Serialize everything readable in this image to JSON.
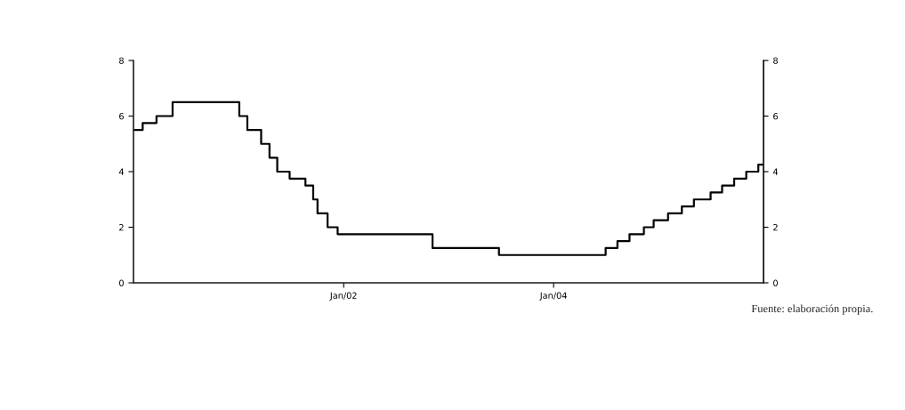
{
  "chart_data": {
    "type": "step",
    "x": [
      "2000-01-01",
      "2000-02-02",
      "2000-03-21",
      "2000-05-16",
      "2001-01-03",
      "2001-01-31",
      "2001-03-20",
      "2001-04-18",
      "2001-05-15",
      "2001-06-27",
      "2001-08-21",
      "2001-09-17",
      "2001-10-02",
      "2001-11-06",
      "2001-12-11",
      "2002-11-06",
      "2003-06-25",
      "2004-06-30",
      "2004-08-10",
      "2004-09-21",
      "2004-11-10",
      "2004-12-14",
      "2005-02-02",
      "2005-03-22",
      "2005-05-03",
      "2005-06-30",
      "2005-08-09",
      "2005-09-20",
      "2005-11-01",
      "2005-12-13",
      "2005-12-31"
    ],
    "series": [
      {
        "color": "#000000",
        "values": [
          5.5,
          5.75,
          6.0,
          6.5,
          6.0,
          5.5,
          5.0,
          4.5,
          4.0,
          3.75,
          3.5,
          3.0,
          2.5,
          2.0,
          1.75,
          1.25,
          1.0,
          1.25,
          1.5,
          1.75,
          2.0,
          2.25,
          2.5,
          2.75,
          3.0,
          3.25,
          3.5,
          3.75,
          4.0,
          4.25,
          4.25
        ]
      }
    ],
    "xlim": [
      "2000-01-01",
      "2005-12-31"
    ],
    "xticks": [
      {
        "value": "2002-01-01",
        "label": "Jan/02"
      },
      {
        "value": "2004-01-01",
        "label": "Jan/04"
      }
    ],
    "ylim": [
      0,
      8
    ],
    "yticks": [
      0,
      2,
      4,
      6,
      8
    ],
    "y2lim": [
      0,
      8
    ],
    "y2ticks": [
      0,
      2,
      4,
      6,
      8
    ],
    "grid": false,
    "legend": false,
    "line_style": "solid",
    "marker": "none",
    "annotations": [
      "Fuente: elaboración propia."
    ]
  }
}
